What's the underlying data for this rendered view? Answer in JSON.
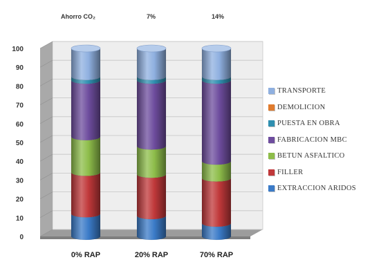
{
  "savings_header": {
    "label": "Ahorro CO₂",
    "values": [
      "",
      "7%",
      "14%"
    ]
  },
  "chart_data": {
    "type": "bar",
    "stacked": true,
    "style": "3d-cylinder",
    "categories": [
      "0% RAP",
      "20% RAP",
      "70% RAP"
    ],
    "ylim": [
      0,
      100
    ],
    "yticks": [
      0,
      10,
      20,
      30,
      40,
      50,
      60,
      70,
      80,
      90,
      100
    ],
    "grid": true,
    "legend_position": "right",
    "series": [
      {
        "name": "EXTRACCION ARIDOS",
        "color": "#3b7bc8",
        "values": [
          12,
          11,
          7
        ]
      },
      {
        "name": "FILLER",
        "color": "#c0383a",
        "values": [
          22,
          22,
          24
        ]
      },
      {
        "name": "BETUN ASFALTICO",
        "color": "#8ebd4a",
        "values": [
          19,
          15,
          9
        ]
      },
      {
        "name": "FABRICACION MBC",
        "color": "#6e4d9e",
        "values": [
          30,
          35,
          43
        ]
      },
      {
        "name": "PUESTA EN OBRA",
        "color": "#2f8fb0",
        "values": [
          2,
          2,
          2
        ]
      },
      {
        "name": "DEMOLICION",
        "color": "#e07b2e",
        "values": [
          0,
          0,
          0
        ]
      },
      {
        "name": "TRANSPORTE",
        "color": "#8fb0e0",
        "values": [
          15,
          15,
          15
        ]
      }
    ]
  }
}
